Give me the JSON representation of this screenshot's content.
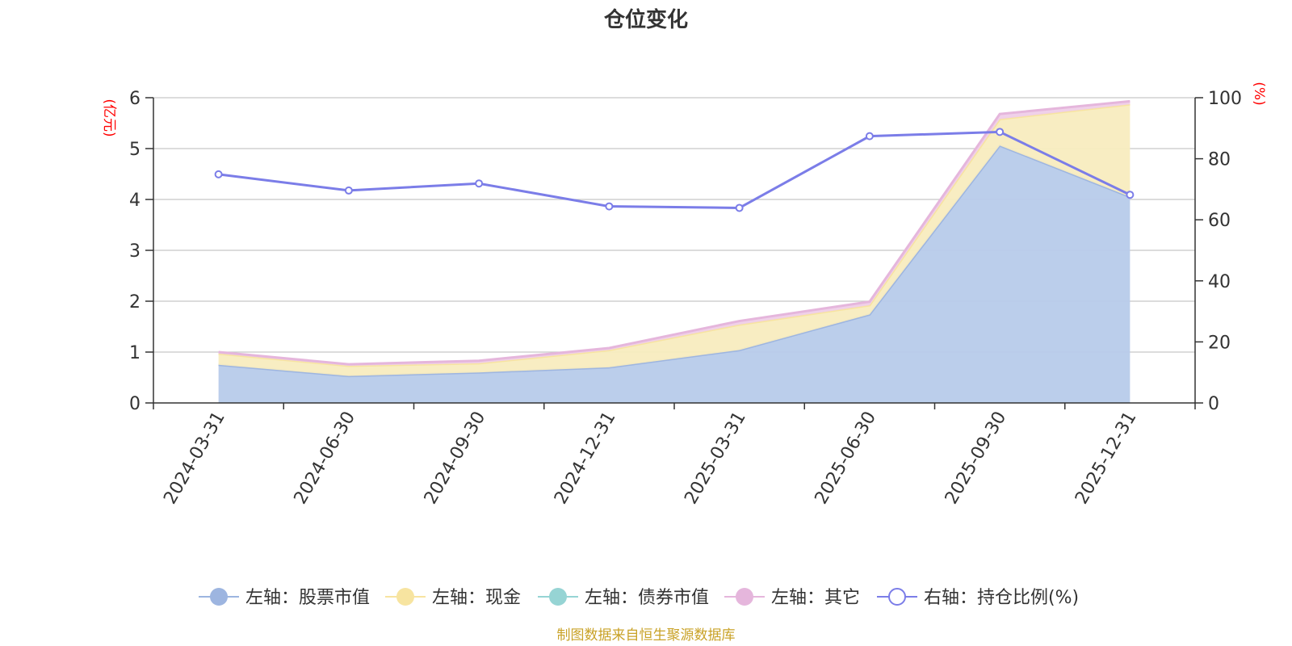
{
  "chart_data": {
    "type": "area",
    "title": "仓位变化",
    "left_unit": "(亿元)",
    "right_unit": "(%)",
    "categories": [
      "2024-03-31",
      "2024-06-30",
      "2024-09-30",
      "2024-12-31",
      "2025-03-31",
      "2025-06-30",
      "2025-09-30",
      "2025-12-31"
    ],
    "left_axis": {
      "min": 0,
      "max": 6,
      "ticks": [
        "0",
        "1",
        "2",
        "3",
        "4",
        "5",
        "6"
      ]
    },
    "right_axis": {
      "min": 0,
      "max": 100,
      "ticks": [
        "0",
        "20",
        "40",
        "60",
        "80",
        "100"
      ]
    },
    "series": [
      {
        "name": "左轴：股票市值",
        "axis": "left",
        "kind": "stacked-area",
        "color": "#9db5e0",
        "fill": "#b7cbea",
        "values": [
          0.75,
          0.53,
          0.6,
          0.7,
          1.04,
          1.74,
          5.06,
          4.05
        ]
      },
      {
        "name": "左轴：现金",
        "axis": "left",
        "kind": "stacked-area",
        "color": "#f7e4a0",
        "fill": "#f8ecbf",
        "values": [
          0.22,
          0.2,
          0.18,
          0.34,
          0.5,
          0.18,
          0.52,
          1.82
        ]
      },
      {
        "name": "左轴：债券市值",
        "axis": "left",
        "kind": "stacked-area",
        "color": "#96d4d4",
        "fill": "#b5e2e2",
        "values": [
          0,
          0,
          0,
          0,
          0,
          0,
          0,
          0
        ]
      },
      {
        "name": "左轴：其它",
        "axis": "left",
        "kind": "stacked-area",
        "color": "#e5b6dc",
        "fill": "#efcfe9",
        "values": [
          0.03,
          0.03,
          0.05,
          0.04,
          0.07,
          0.07,
          0.1,
          0.06
        ]
      },
      {
        "name": "右轴：持仓比例(%)",
        "axis": "right",
        "kind": "line",
        "color": "#7b7de8",
        "values": [
          74.9,
          69.6,
          71.9,
          64.4,
          63.9,
          87.4,
          88.8,
          68.2
        ]
      }
    ],
    "legend_position": "bottom",
    "source": "制图数据来自恒生聚源数据库"
  }
}
